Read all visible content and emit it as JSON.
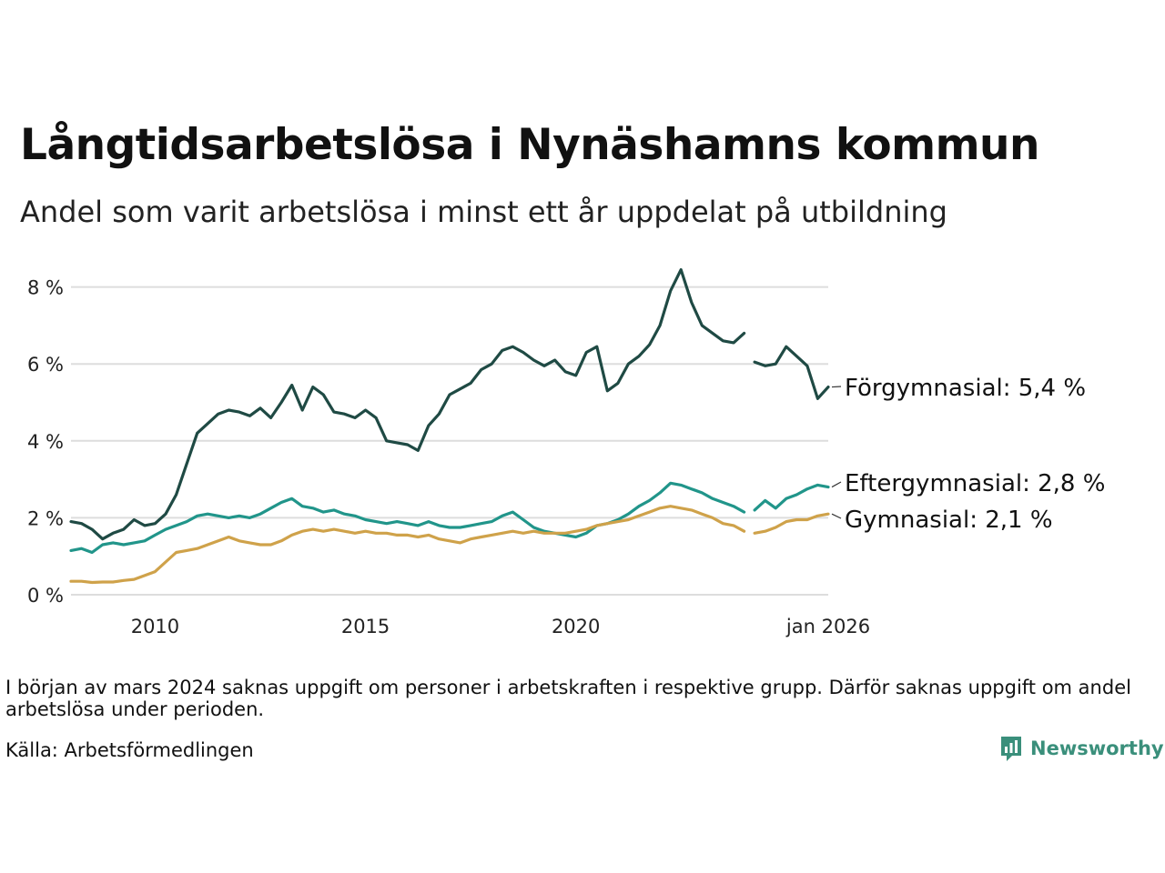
{
  "header": {
    "title": "Långtidsarbetslösa i Nynäshamns kommun",
    "subtitle": "Andel som varit arbetslösa i minst ett år uppdelat på utbildning"
  },
  "footer": {
    "note": "I början av mars 2024 saknas uppgift om personer i arbetskraften i respektive grupp. Därför saknas uppgift om andel arbetslösa under perioden.",
    "source": "Källa: Arbetsförmedlingen",
    "brand": "Newsworthy"
  },
  "colors": {
    "forgymnasial": "#1f4a44",
    "eftergymnasial": "#21958a",
    "gymnasial": "#cfa24a",
    "grid": "#dddddd",
    "brand": "#3a8f7b"
  },
  "chart_data": {
    "type": "line",
    "title": "Långtidsarbetslösa i Nynäshamns kommun",
    "xlabel": "",
    "ylabel": "",
    "xlim": [
      2008.0,
      2026.0
    ],
    "ylim": [
      0,
      8.6
    ],
    "y_ticks": [
      0,
      2,
      4,
      6,
      8
    ],
    "y_tick_labels": [
      "0 %",
      "2 %",
      "4 %",
      "6 %",
      "8 %"
    ],
    "x_ticks": [
      2010,
      2015,
      2020,
      2026
    ],
    "x_tick_labels": [
      "2010",
      "2015",
      "2020",
      "jan 2026"
    ],
    "gap": [
      2024.0,
      2024.25
    ],
    "series": [
      {
        "key": "forgymnasial",
        "name": "Förgymnasial",
        "end_label": "Förgymnasial: 5,4 %",
        "points": [
          [
            2008.0,
            1.9
          ],
          [
            2008.25,
            1.85
          ],
          [
            2008.5,
            1.7
          ],
          [
            2008.75,
            1.45
          ],
          [
            2009.0,
            1.6
          ],
          [
            2009.25,
            1.7
          ],
          [
            2009.5,
            1.95
          ],
          [
            2009.75,
            1.8
          ],
          [
            2010.0,
            1.85
          ],
          [
            2010.25,
            2.1
          ],
          [
            2010.5,
            2.6
          ],
          [
            2010.75,
            3.4
          ],
          [
            2011.0,
            4.2
          ],
          [
            2011.25,
            4.45
          ],
          [
            2011.5,
            4.7
          ],
          [
            2011.75,
            4.8
          ],
          [
            2012.0,
            4.75
          ],
          [
            2012.25,
            4.65
          ],
          [
            2012.5,
            4.85
          ],
          [
            2012.75,
            4.6
          ],
          [
            2013.0,
            5.0
          ],
          [
            2013.25,
            5.45
          ],
          [
            2013.5,
            4.8
          ],
          [
            2013.75,
            5.4
          ],
          [
            2014.0,
            5.2
          ],
          [
            2014.25,
            4.75
          ],
          [
            2014.5,
            4.7
          ],
          [
            2014.75,
            4.6
          ],
          [
            2015.0,
            4.8
          ],
          [
            2015.25,
            4.6
          ],
          [
            2015.5,
            4.0
          ],
          [
            2015.75,
            3.95
          ],
          [
            2016.0,
            3.9
          ],
          [
            2016.25,
            3.75
          ],
          [
            2016.5,
            4.4
          ],
          [
            2016.75,
            4.7
          ],
          [
            2017.0,
            5.2
          ],
          [
            2017.25,
            5.35
          ],
          [
            2017.5,
            5.5
          ],
          [
            2017.75,
            5.85
          ],
          [
            2018.0,
            6.0
          ],
          [
            2018.25,
            6.35
          ],
          [
            2018.5,
            6.45
          ],
          [
            2018.75,
            6.3
          ],
          [
            2019.0,
            6.1
          ],
          [
            2019.25,
            5.95
          ],
          [
            2019.5,
            6.1
          ],
          [
            2019.75,
            5.8
          ],
          [
            2020.0,
            5.7
          ],
          [
            2020.25,
            6.3
          ],
          [
            2020.5,
            6.45
          ],
          [
            2020.75,
            5.3
          ],
          [
            2021.0,
            5.5
          ],
          [
            2021.25,
            6.0
          ],
          [
            2021.5,
            6.2
          ],
          [
            2021.75,
            6.5
          ],
          [
            2022.0,
            7.0
          ],
          [
            2022.25,
            7.9
          ],
          [
            2022.5,
            8.45
          ],
          [
            2022.75,
            7.6
          ],
          [
            2023.0,
            7.0
          ],
          [
            2023.25,
            6.8
          ],
          [
            2023.5,
            6.6
          ],
          [
            2023.75,
            6.55
          ],
          [
            2024.0,
            6.8
          ],
          [
            2024.25,
            6.05
          ],
          [
            2024.5,
            5.95
          ],
          [
            2024.75,
            6.0
          ],
          [
            2025.0,
            6.45
          ],
          [
            2025.25,
            6.2
          ],
          [
            2025.5,
            5.95
          ],
          [
            2025.75,
            5.1
          ],
          [
            2026.0,
            5.4
          ]
        ]
      },
      {
        "key": "eftergymnasial",
        "name": "Eftergymnasial",
        "end_label": "Eftergymnasial: 2,8 %",
        "points": [
          [
            2008.0,
            1.15
          ],
          [
            2008.25,
            1.2
          ],
          [
            2008.5,
            1.1
          ],
          [
            2008.75,
            1.3
          ],
          [
            2009.0,
            1.35
          ],
          [
            2009.25,
            1.3
          ],
          [
            2009.5,
            1.35
          ],
          [
            2009.75,
            1.4
          ],
          [
            2010.0,
            1.55
          ],
          [
            2010.25,
            1.7
          ],
          [
            2010.5,
            1.8
          ],
          [
            2010.75,
            1.9
          ],
          [
            2011.0,
            2.05
          ],
          [
            2011.25,
            2.1
          ],
          [
            2011.5,
            2.05
          ],
          [
            2011.75,
            2.0
          ],
          [
            2012.0,
            2.05
          ],
          [
            2012.25,
            2.0
          ],
          [
            2012.5,
            2.1
          ],
          [
            2012.75,
            2.25
          ],
          [
            2013.0,
            2.4
          ],
          [
            2013.25,
            2.5
          ],
          [
            2013.5,
            2.3
          ],
          [
            2013.75,
            2.25
          ],
          [
            2014.0,
            2.15
          ],
          [
            2014.25,
            2.2
          ],
          [
            2014.5,
            2.1
          ],
          [
            2014.75,
            2.05
          ],
          [
            2015.0,
            1.95
          ],
          [
            2015.25,
            1.9
          ],
          [
            2015.5,
            1.85
          ],
          [
            2015.75,
            1.9
          ],
          [
            2016.0,
            1.85
          ],
          [
            2016.25,
            1.8
          ],
          [
            2016.5,
            1.9
          ],
          [
            2016.75,
            1.8
          ],
          [
            2017.0,
            1.75
          ],
          [
            2017.25,
            1.75
          ],
          [
            2017.5,
            1.8
          ],
          [
            2017.75,
            1.85
          ],
          [
            2018.0,
            1.9
          ],
          [
            2018.25,
            2.05
          ],
          [
            2018.5,
            2.15
          ],
          [
            2018.75,
            1.95
          ],
          [
            2019.0,
            1.75
          ],
          [
            2019.25,
            1.65
          ],
          [
            2019.5,
            1.6
          ],
          [
            2019.75,
            1.55
          ],
          [
            2020.0,
            1.5
          ],
          [
            2020.25,
            1.6
          ],
          [
            2020.5,
            1.8
          ],
          [
            2020.75,
            1.85
          ],
          [
            2021.0,
            1.95
          ],
          [
            2021.25,
            2.1
          ],
          [
            2021.5,
            2.3
          ],
          [
            2021.75,
            2.45
          ],
          [
            2022.0,
            2.65
          ],
          [
            2022.25,
            2.9
          ],
          [
            2022.5,
            2.85
          ],
          [
            2022.75,
            2.75
          ],
          [
            2023.0,
            2.65
          ],
          [
            2023.25,
            2.5
          ],
          [
            2023.5,
            2.4
          ],
          [
            2023.75,
            2.3
          ],
          [
            2024.0,
            2.15
          ],
          [
            2024.25,
            2.2
          ],
          [
            2024.5,
            2.45
          ],
          [
            2024.75,
            2.25
          ],
          [
            2025.0,
            2.5
          ],
          [
            2025.25,
            2.6
          ],
          [
            2025.5,
            2.75
          ],
          [
            2025.75,
            2.85
          ],
          [
            2026.0,
            2.8
          ]
        ]
      },
      {
        "key": "gymnasial",
        "name": "Gymnasial",
        "end_label": "Gymnasial: 2,1 %",
        "points": [
          [
            2008.0,
            0.35
          ],
          [
            2008.25,
            0.35
          ],
          [
            2008.5,
            0.32
          ],
          [
            2008.75,
            0.33
          ],
          [
            2009.0,
            0.33
          ],
          [
            2009.25,
            0.37
          ],
          [
            2009.5,
            0.4
          ],
          [
            2009.75,
            0.5
          ],
          [
            2010.0,
            0.6
          ],
          [
            2010.25,
            0.85
          ],
          [
            2010.5,
            1.1
          ],
          [
            2010.75,
            1.15
          ],
          [
            2011.0,
            1.2
          ],
          [
            2011.25,
            1.3
          ],
          [
            2011.5,
            1.4
          ],
          [
            2011.75,
            1.5
          ],
          [
            2012.0,
            1.4
          ],
          [
            2012.25,
            1.35
          ],
          [
            2012.5,
            1.3
          ],
          [
            2012.75,
            1.3
          ],
          [
            2013.0,
            1.4
          ],
          [
            2013.25,
            1.55
          ],
          [
            2013.5,
            1.65
          ],
          [
            2013.75,
            1.7
          ],
          [
            2014.0,
            1.65
          ],
          [
            2014.25,
            1.7
          ],
          [
            2014.5,
            1.65
          ],
          [
            2014.75,
            1.6
          ],
          [
            2015.0,
            1.65
          ],
          [
            2015.25,
            1.6
          ],
          [
            2015.5,
            1.6
          ],
          [
            2015.75,
            1.55
          ],
          [
            2016.0,
            1.55
          ],
          [
            2016.25,
            1.5
          ],
          [
            2016.5,
            1.55
          ],
          [
            2016.75,
            1.45
          ],
          [
            2017.0,
            1.4
          ],
          [
            2017.25,
            1.35
          ],
          [
            2017.5,
            1.45
          ],
          [
            2017.75,
            1.5
          ],
          [
            2018.0,
            1.55
          ],
          [
            2018.25,
            1.6
          ],
          [
            2018.5,
            1.65
          ],
          [
            2018.75,
            1.6
          ],
          [
            2019.0,
            1.65
          ],
          [
            2019.25,
            1.6
          ],
          [
            2019.5,
            1.6
          ],
          [
            2019.75,
            1.6
          ],
          [
            2020.0,
            1.65
          ],
          [
            2020.25,
            1.7
          ],
          [
            2020.5,
            1.8
          ],
          [
            2020.75,
            1.85
          ],
          [
            2021.0,
            1.9
          ],
          [
            2021.25,
            1.95
          ],
          [
            2021.5,
            2.05
          ],
          [
            2021.75,
            2.15
          ],
          [
            2022.0,
            2.25
          ],
          [
            2022.25,
            2.3
          ],
          [
            2022.5,
            2.25
          ],
          [
            2022.75,
            2.2
          ],
          [
            2023.0,
            2.1
          ],
          [
            2023.25,
            2.0
          ],
          [
            2023.5,
            1.85
          ],
          [
            2023.75,
            1.8
          ],
          [
            2024.0,
            1.65
          ],
          [
            2024.25,
            1.6
          ],
          [
            2024.5,
            1.65
          ],
          [
            2024.75,
            1.75
          ],
          [
            2025.0,
            1.9
          ],
          [
            2025.25,
            1.95
          ],
          [
            2025.5,
            1.95
          ],
          [
            2025.75,
            2.05
          ],
          [
            2026.0,
            2.1
          ]
        ]
      }
    ]
  }
}
